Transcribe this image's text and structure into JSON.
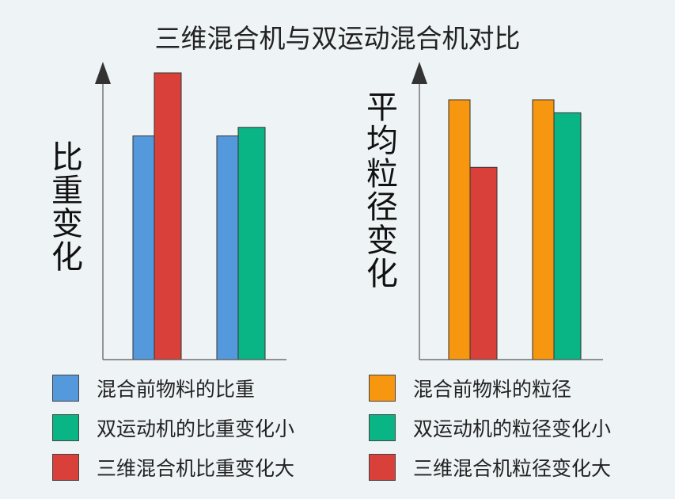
{
  "title": "三维混合机与双运动混合机对比",
  "chart_data": [
    {
      "type": "bar",
      "ylabel": "比重变化",
      "ylim": [
        0,
        10
      ],
      "groups": [
        {
          "bars": [
            {
              "series": 0,
              "value": 7.8
            },
            {
              "series": 2,
              "value": 10.0
            }
          ]
        },
        {
          "bars": [
            {
              "series": 0,
              "value": 7.8
            },
            {
              "series": 1,
              "value": 8.1
            }
          ]
        }
      ],
      "series": [
        {
          "name": "混合前物料的比重",
          "color": "#5599dd"
        },
        {
          "name": "双运动机的比重变化小",
          "color": "#0ab585"
        },
        {
          "name": "三维混合机比重变化大",
          "color": "#d9403a"
        }
      ]
    },
    {
      "type": "bar",
      "ylabel": "平均粒径变化",
      "ylim": [
        0,
        10
      ],
      "groups": [
        {
          "bars": [
            {
              "series": 0,
              "value": 10.0
            },
            {
              "series": 2,
              "value": 7.4
            }
          ]
        },
        {
          "bars": [
            {
              "series": 0,
              "value": 10.0
            },
            {
              "series": 1,
              "value": 9.5
            }
          ]
        }
      ],
      "series": [
        {
          "name": "混合前物料的粒径",
          "color": "#f7960f"
        },
        {
          "name": "双运动机的粒径变化小",
          "color": "#0ab585"
        },
        {
          "name": "三维混合机粒径变化大",
          "color": "#d9403a"
        }
      ]
    }
  ]
}
